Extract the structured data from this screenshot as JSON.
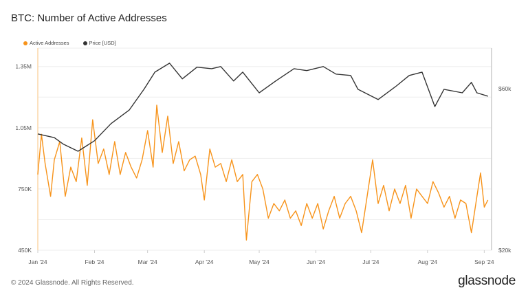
{
  "title": "BTC: Number of Active Addresses",
  "footer": "© 2024 Glassnode. All Rights Reserved.",
  "brand": "glassnode",
  "chart_data": {
    "type": "line",
    "title": "BTC: Number of Active Addresses",
    "legend_position": "top-left",
    "grid": true,
    "x_ticks": [
      "Jan '24",
      "Feb '24",
      "Mar '24",
      "Apr '24",
      "May '24",
      "Jun '24",
      "Jul '24",
      "Aug '24",
      "Sep '24"
    ],
    "x_tick_dates": [
      "2024-01-01",
      "2024-02-01",
      "2024-03-01",
      "2024-04-01",
      "2024-05-01",
      "2024-06-01",
      "2024-07-01",
      "2024-08-01",
      "2024-09-01"
    ],
    "y_left": {
      "ticks": [
        "450K",
        "750K",
        "1.05M",
        "1.35M"
      ],
      "tick_values": [
        450000,
        750000,
        1050000,
        1350000
      ],
      "range": [
        450000,
        1440000
      ],
      "scale": "linear"
    },
    "y_right": {
      "ticks": [
        "$20k",
        "$60k"
      ],
      "tick_values": [
        20000,
        60000
      ],
      "range": [
        20000,
        79000
      ],
      "scale": "log"
    },
    "series": [
      {
        "name": "Active Addresses",
        "axis": "left",
        "color": "#f7931a",
        "points": [
          [
            "2024-01-01",
            821000
          ],
          [
            "2024-01-03",
            1018000
          ],
          [
            "2024-01-05",
            875000
          ],
          [
            "2024-01-08",
            714000
          ],
          [
            "2024-01-10",
            893000
          ],
          [
            "2024-01-13",
            982000
          ],
          [
            "2024-01-16",
            714000
          ],
          [
            "2024-01-19",
            857000
          ],
          [
            "2024-01-22",
            786000
          ],
          [
            "2024-01-25",
            1000000
          ],
          [
            "2024-01-28",
            768000
          ],
          [
            "2024-01-31",
            1089000
          ],
          [
            "2024-02-03",
            875000
          ],
          [
            "2024-02-06",
            946000
          ],
          [
            "2024-02-09",
            821000
          ],
          [
            "2024-02-12",
            982000
          ],
          [
            "2024-02-15",
            821000
          ],
          [
            "2024-02-18",
            929000
          ],
          [
            "2024-02-21",
            857000
          ],
          [
            "2024-02-24",
            804000
          ],
          [
            "2024-02-27",
            893000
          ],
          [
            "2024-03-01",
            1036000
          ],
          [
            "2024-03-04",
            857000
          ],
          [
            "2024-03-06",
            1161000
          ],
          [
            "2024-03-09",
            929000
          ],
          [
            "2024-03-12",
            1107000
          ],
          [
            "2024-03-15",
            875000
          ],
          [
            "2024-03-18",
            982000
          ],
          [
            "2024-03-21",
            839000
          ],
          [
            "2024-03-24",
            893000
          ],
          [
            "2024-03-27",
            911000
          ],
          [
            "2024-03-30",
            821000
          ],
          [
            "2024-04-01",
            696000
          ],
          [
            "2024-04-04",
            946000
          ],
          [
            "2024-04-07",
            857000
          ],
          [
            "2024-04-10",
            875000
          ],
          [
            "2024-04-13",
            786000
          ],
          [
            "2024-04-16",
            893000
          ],
          [
            "2024-04-19",
            786000
          ],
          [
            "2024-04-22",
            821000
          ],
          [
            "2024-04-24",
            500000
          ],
          [
            "2024-04-27",
            786000
          ],
          [
            "2024-04-30",
            821000
          ],
          [
            "2024-05-03",
            750000
          ],
          [
            "2024-05-06",
            607000
          ],
          [
            "2024-05-09",
            679000
          ],
          [
            "2024-05-12",
            643000
          ],
          [
            "2024-05-15",
            696000
          ],
          [
            "2024-05-18",
            607000
          ],
          [
            "2024-05-21",
            643000
          ],
          [
            "2024-05-24",
            571000
          ],
          [
            "2024-05-27",
            679000
          ],
          [
            "2024-05-30",
            607000
          ],
          [
            "2024-06-02",
            679000
          ],
          [
            "2024-06-05",
            554000
          ],
          [
            "2024-06-08",
            643000
          ],
          [
            "2024-06-11",
            714000
          ],
          [
            "2024-06-14",
            607000
          ],
          [
            "2024-06-17",
            679000
          ],
          [
            "2024-06-20",
            714000
          ],
          [
            "2024-06-23",
            643000
          ],
          [
            "2024-06-26",
            536000
          ],
          [
            "2024-06-29",
            714000
          ],
          [
            "2024-07-02",
            893000
          ],
          [
            "2024-07-05",
            679000
          ],
          [
            "2024-07-08",
            768000
          ],
          [
            "2024-07-11",
            643000
          ],
          [
            "2024-07-14",
            750000
          ],
          [
            "2024-07-17",
            679000
          ],
          [
            "2024-07-20",
            768000
          ],
          [
            "2024-07-23",
            607000
          ],
          [
            "2024-07-26",
            750000
          ],
          [
            "2024-07-29",
            714000
          ],
          [
            "2024-08-01",
            679000
          ],
          [
            "2024-08-04",
            786000
          ],
          [
            "2024-08-07",
            732000
          ],
          [
            "2024-08-10",
            661000
          ],
          [
            "2024-08-13",
            714000
          ],
          [
            "2024-08-16",
            607000
          ],
          [
            "2024-08-19",
            696000
          ],
          [
            "2024-08-22",
            679000
          ],
          [
            "2024-08-25",
            536000
          ],
          [
            "2024-08-28",
            714000
          ],
          [
            "2024-08-30",
            829000
          ],
          [
            "2024-09-01",
            661000
          ],
          [
            "2024-09-03",
            696000
          ]
        ]
      },
      {
        "name": "Price [USD]",
        "axis": "right",
        "color": "#333333",
        "points": [
          [
            "2024-01-01",
            44100
          ],
          [
            "2024-01-10",
            43000
          ],
          [
            "2024-01-15",
            41100
          ],
          [
            "2024-01-23",
            39200
          ],
          [
            "2024-02-01",
            42100
          ],
          [
            "2024-02-10",
            47300
          ],
          [
            "2024-02-20",
            51900
          ],
          [
            "2024-02-28",
            59700
          ],
          [
            "2024-03-05",
            67100
          ],
          [
            "2024-03-13",
            71300
          ],
          [
            "2024-03-20",
            64100
          ],
          [
            "2024-03-28",
            69400
          ],
          [
            "2024-04-05",
            68700
          ],
          [
            "2024-04-10",
            69700
          ],
          [
            "2024-04-17",
            63200
          ],
          [
            "2024-04-22",
            67100
          ],
          [
            "2024-05-01",
            58300
          ],
          [
            "2024-05-10",
            63200
          ],
          [
            "2024-05-20",
            68700
          ],
          [
            "2024-05-27",
            67800
          ],
          [
            "2024-06-05",
            69700
          ],
          [
            "2024-06-12",
            66200
          ],
          [
            "2024-06-20",
            65600
          ],
          [
            "2024-06-24",
            59700
          ],
          [
            "2024-07-05",
            55700
          ],
          [
            "2024-07-15",
            61100
          ],
          [
            "2024-07-22",
            65600
          ],
          [
            "2024-07-29",
            67100
          ],
          [
            "2024-08-05",
            53100
          ],
          [
            "2024-08-10",
            59700
          ],
          [
            "2024-08-20",
            58300
          ],
          [
            "2024-08-25",
            62600
          ],
          [
            "2024-08-28",
            58300
          ],
          [
            "2024-09-03",
            57000
          ]
        ]
      }
    ]
  }
}
